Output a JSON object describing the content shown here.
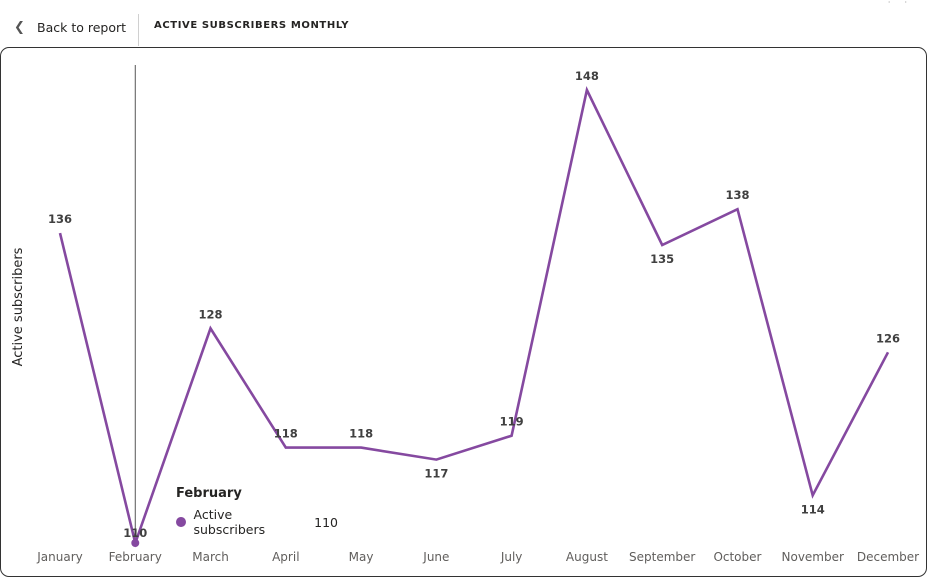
{
  "nav": {
    "back_label": "Back to report",
    "page_title": "ACTIVE SUBSCRIBERS MONTHLY"
  },
  "chart_data": {
    "type": "line",
    "categories": [
      "January",
      "February",
      "March",
      "April",
      "May",
      "June",
      "July",
      "August",
      "September",
      "October",
      "November",
      "December"
    ],
    "series": [
      {
        "name": "Active subscribers",
        "values": [
          136,
          110,
          128,
          118,
          118,
          117,
          119,
          148,
          135,
          138,
          114,
          126
        ]
      }
    ],
    "ylabel": "Active subscribers",
    "xlabel": "",
    "ylim": [
      110,
      148
    ],
    "y_axis_visible": false,
    "grid": false,
    "data_labels": true,
    "line_color": "#8549A0",
    "hovered_index": 1
  },
  "tooltip": {
    "title": "February",
    "series_name": "Active subscribers",
    "value": "110",
    "dot_color": "#8549A0"
  }
}
